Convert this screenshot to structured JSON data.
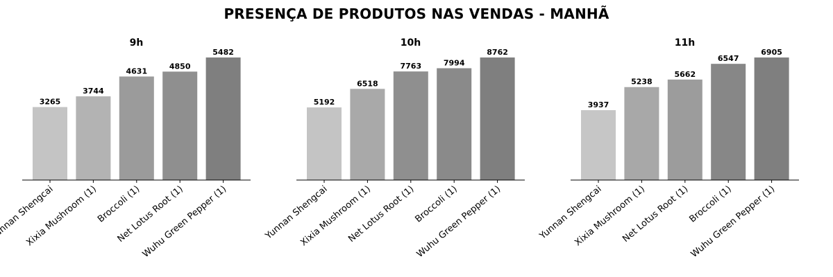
{
  "title": "PRESENÇA DE PRODUTOS NAS VENDAS - MANHÃ",
  "chart_data": [
    {
      "type": "bar",
      "title": "9h",
      "categories": [
        "Yunnan Shengcai",
        "Xixia Mushroom (1)",
        "Broccoli (1)",
        "Net Lotus Root (1)",
        "Wuhu Green Pepper (1)"
      ],
      "values": [
        3265,
        3744,
        4631,
        4850,
        5482
      ],
      "colors": [
        "#c4c4c4",
        "#b3b3b3",
        "#9b9b9b",
        "#8f8f8f",
        "#7f7f7f"
      ],
      "data_labels": [
        "3265",
        "3744",
        "4631",
        "4850",
        "5482"
      ],
      "ylim": [
        0,
        5482
      ],
      "grid": false,
      "legend": "none"
    },
    {
      "type": "bar",
      "title": "10h",
      "categories": [
        "Yunnan Shengcai",
        "Xixia Mushroom (1)",
        "Net Lotus Root (1)",
        "Broccoli (1)",
        "Wuhu Green Pepper (1)"
      ],
      "values": [
        5192,
        6518,
        7763,
        7994,
        8762
      ],
      "colors": [
        "#c4c4c4",
        "#a9a9a9",
        "#8f8f8f",
        "#8a8a8a",
        "#7f7f7f"
      ],
      "data_labels": [
        "5192",
        "6518",
        "7763",
        "7994",
        "8762"
      ],
      "ylim": [
        0,
        8762
      ],
      "grid": false,
      "legend": "none"
    },
    {
      "type": "bar",
      "title": "11h",
      "categories": [
        "Yunnan Shengcai",
        "Xixia Mushroom (1)",
        "Net Lotus Root (1)",
        "Broccoli (1)",
        "Wuhu Green Pepper (1)"
      ],
      "values": [
        3937,
        5238,
        5662,
        6547,
        6905
      ],
      "colors": [
        "#c6c6c6",
        "#a8a8a8",
        "#9c9c9c",
        "#878787",
        "#7f7f7f"
      ],
      "data_labels": [
        "3937",
        "5238",
        "5662",
        "6547",
        "6905"
      ],
      "ylim": [
        0,
        6905
      ],
      "grid": false,
      "legend": "none"
    }
  ]
}
